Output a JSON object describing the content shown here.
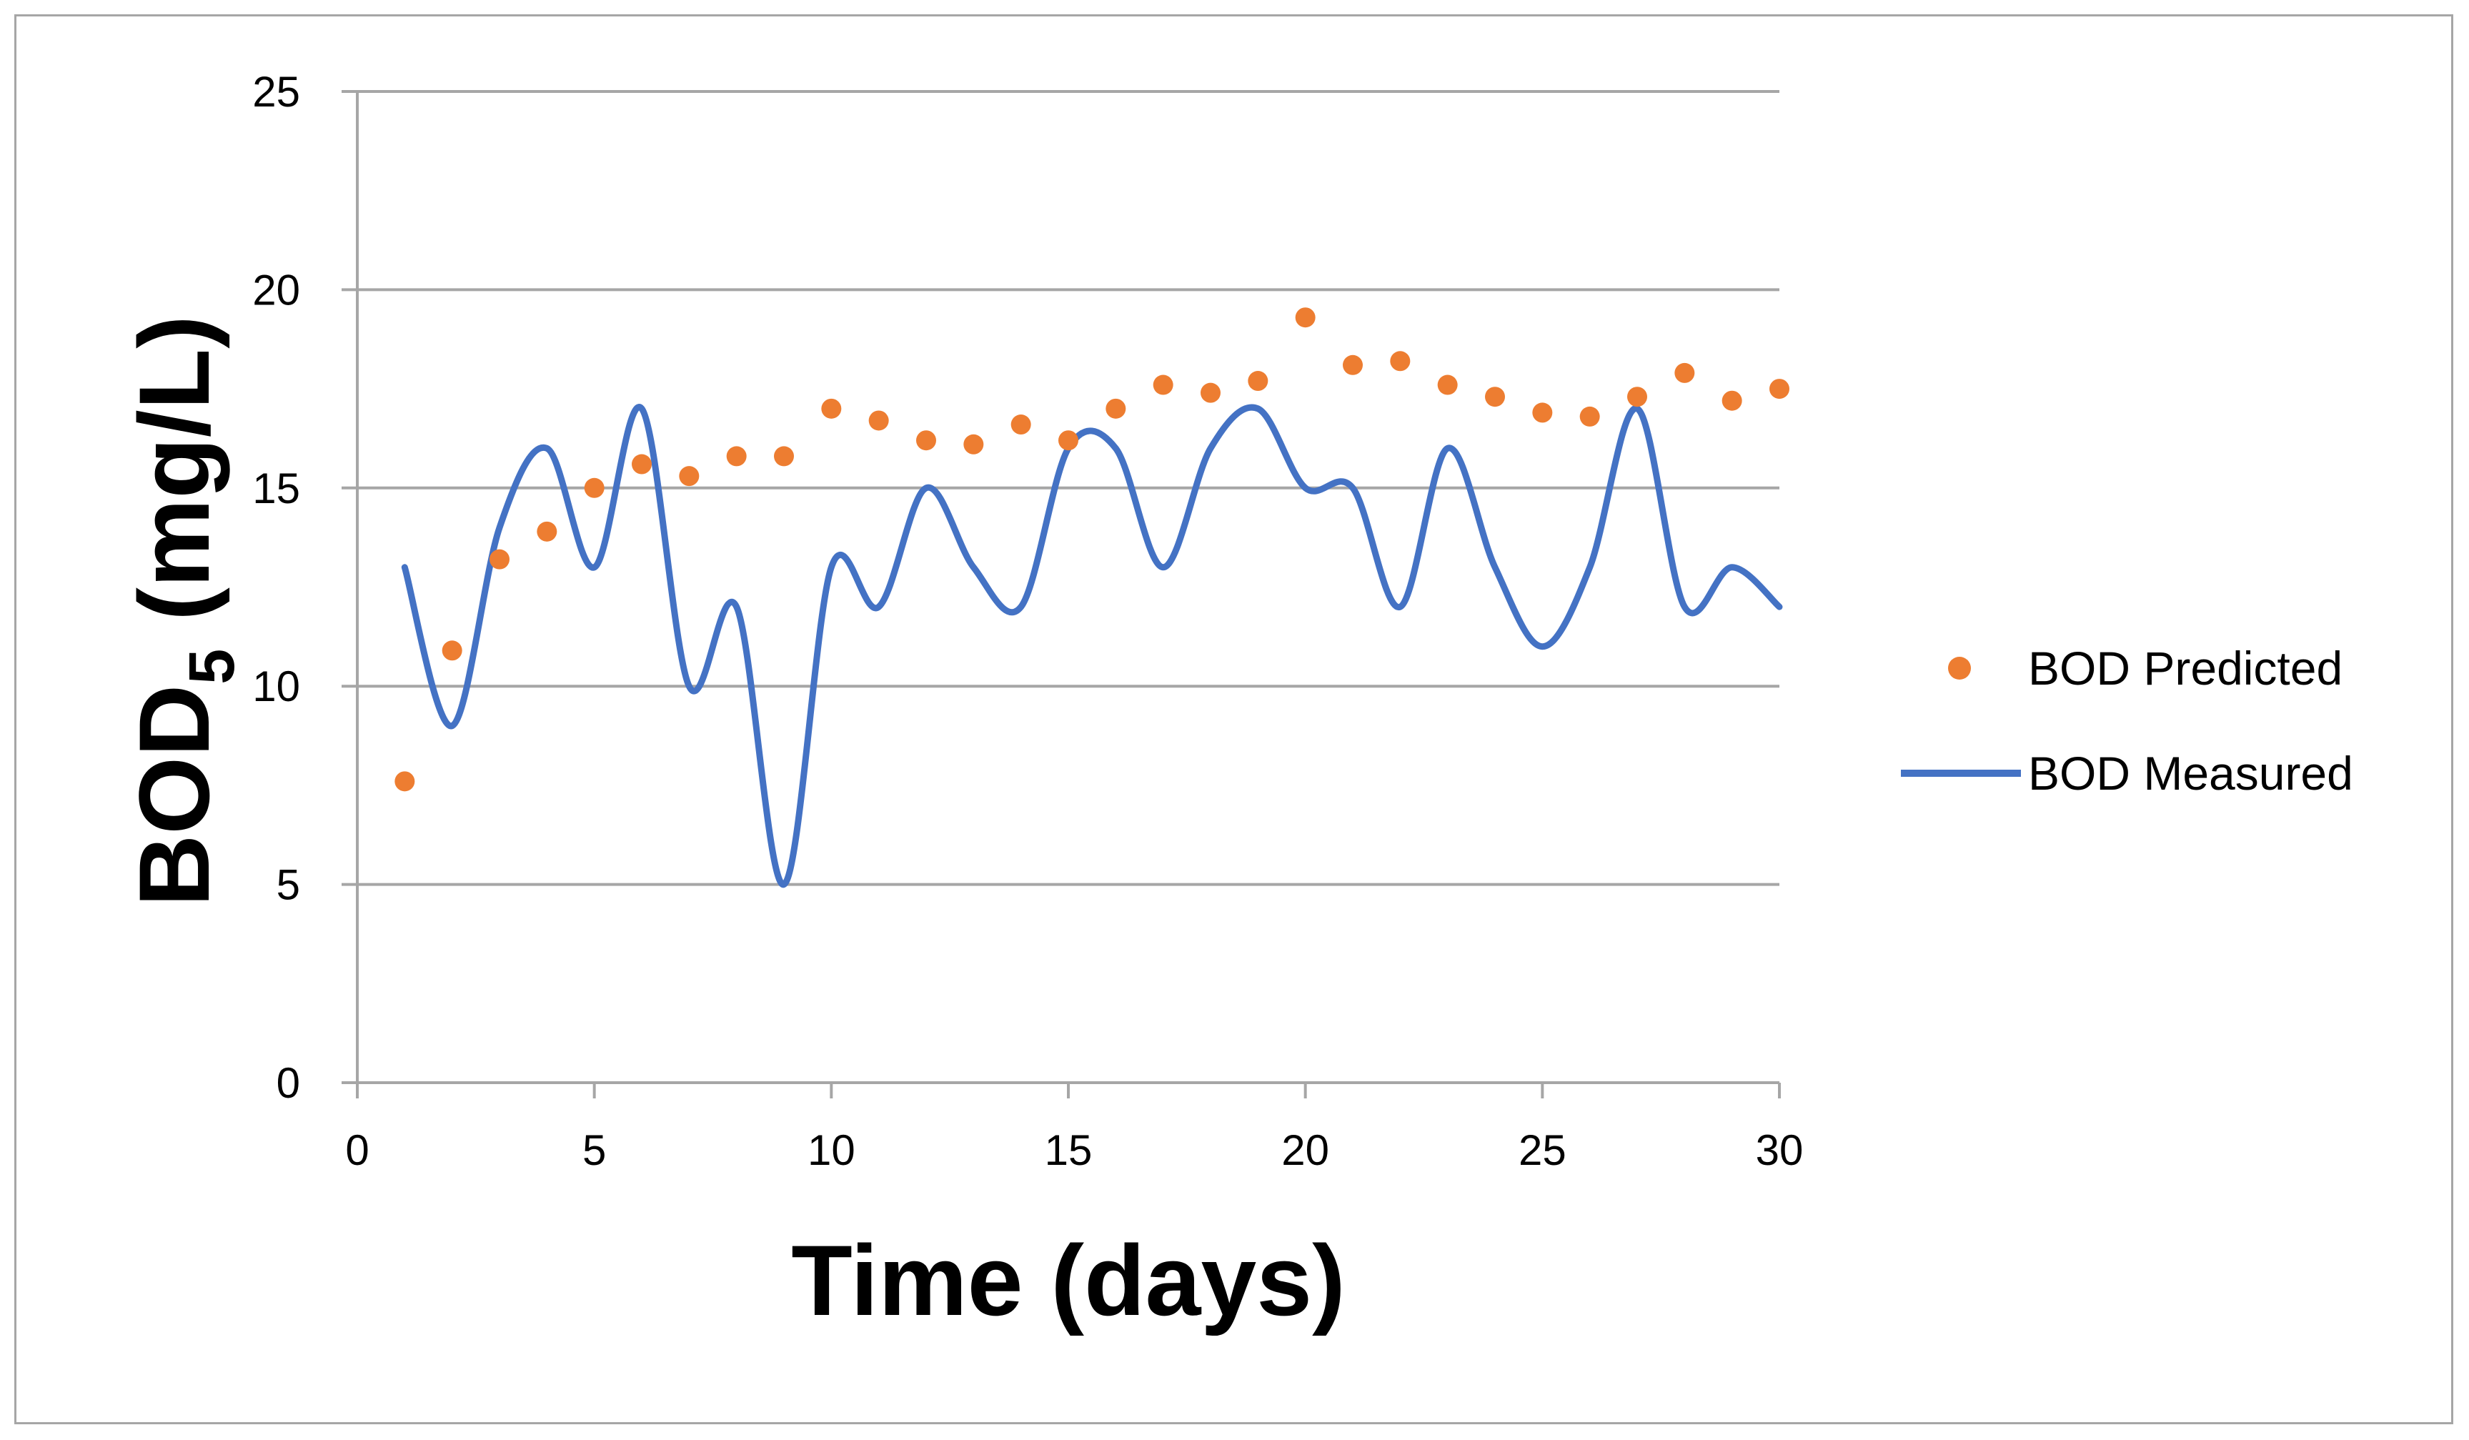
{
  "chart_data": {
    "type": "line",
    "title": "",
    "xlabel": "Time (days)",
    "ylabel_main": "BOD",
    "ylabel_sub": "5",
    "ylabel_unit": " (mg/L)",
    "xlim": [
      0,
      30
    ],
    "ylim": [
      0,
      25
    ],
    "xticks": [
      "0",
      "5",
      "10",
      "15",
      "20",
      "25",
      "30"
    ],
    "yticks": [
      "0",
      "5",
      "10",
      "15",
      "20",
      "25"
    ],
    "grid": "horizontal",
    "legend_position": "right",
    "series": [
      {
        "name": "BOD Predicted",
        "style": "markers",
        "color": "#ED7D31",
        "x": [
          1,
          2,
          3,
          4,
          5,
          6,
          7,
          8,
          9,
          10,
          11,
          12,
          13,
          14,
          15,
          16,
          17,
          18,
          19,
          20,
          21,
          22,
          23,
          24,
          25,
          26,
          27,
          28,
          29,
          30
        ],
        "y": [
          7.6,
          10.9,
          13.2,
          13.9,
          15.0,
          15.6,
          15.3,
          15.8,
          15.8,
          17.0,
          16.7,
          16.2,
          16.1,
          16.6,
          16.2,
          17.0,
          17.6,
          17.4,
          17.7,
          19.3,
          18.1,
          18.2,
          17.6,
          17.3,
          16.9,
          16.8,
          17.3,
          17.9,
          17.2,
          17.5
        ]
      },
      {
        "name": "BOD Measured",
        "style": "smooth-line",
        "color": "#4472C4",
        "x": [
          1,
          2,
          3,
          4,
          5,
          6,
          7,
          8,
          9,
          10,
          11,
          12,
          13,
          14,
          15,
          16,
          17,
          18,
          19,
          20,
          21,
          22,
          23,
          24,
          25,
          26,
          27,
          28,
          29,
          30
        ],
        "y": [
          13,
          9,
          14,
          16,
          13,
          17,
          10,
          12,
          5,
          13,
          12,
          15,
          13,
          12,
          16,
          16,
          13,
          16,
          17,
          15,
          15,
          12,
          16,
          13,
          11,
          13,
          17,
          12,
          13,
          12
        ]
      }
    ]
  }
}
